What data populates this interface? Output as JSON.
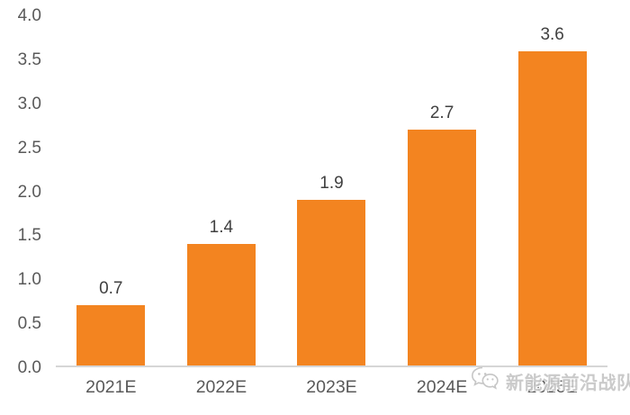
{
  "chart_data": {
    "type": "bar",
    "title": "",
    "xlabel": "",
    "ylabel": "",
    "categories": [
      "2021E",
      "2022E",
      "2023E",
      "2024E",
      "2025E"
    ],
    "values": [
      0.7,
      1.4,
      1.9,
      2.7,
      3.6
    ],
    "data_labels": [
      "0.7",
      "1.4",
      "1.9",
      "2.7",
      "3.6"
    ],
    "ylim": [
      0,
      4.0
    ],
    "yticks": [
      "4.0",
      "3.5",
      "3.0",
      "2.5",
      "2.0",
      "1.5",
      "1.0",
      "0.5",
      "0.0"
    ],
    "grid": false,
    "legend": false,
    "bar_color": "#F38420",
    "axis_line_color": "#D6D6D6",
    "tick_label_color": "#595959",
    "data_label_color": "#404040"
  },
  "watermark": {
    "text": "新能源前沿战队",
    "icon": "wechat-icon",
    "color": "#C6C6C6"
  }
}
